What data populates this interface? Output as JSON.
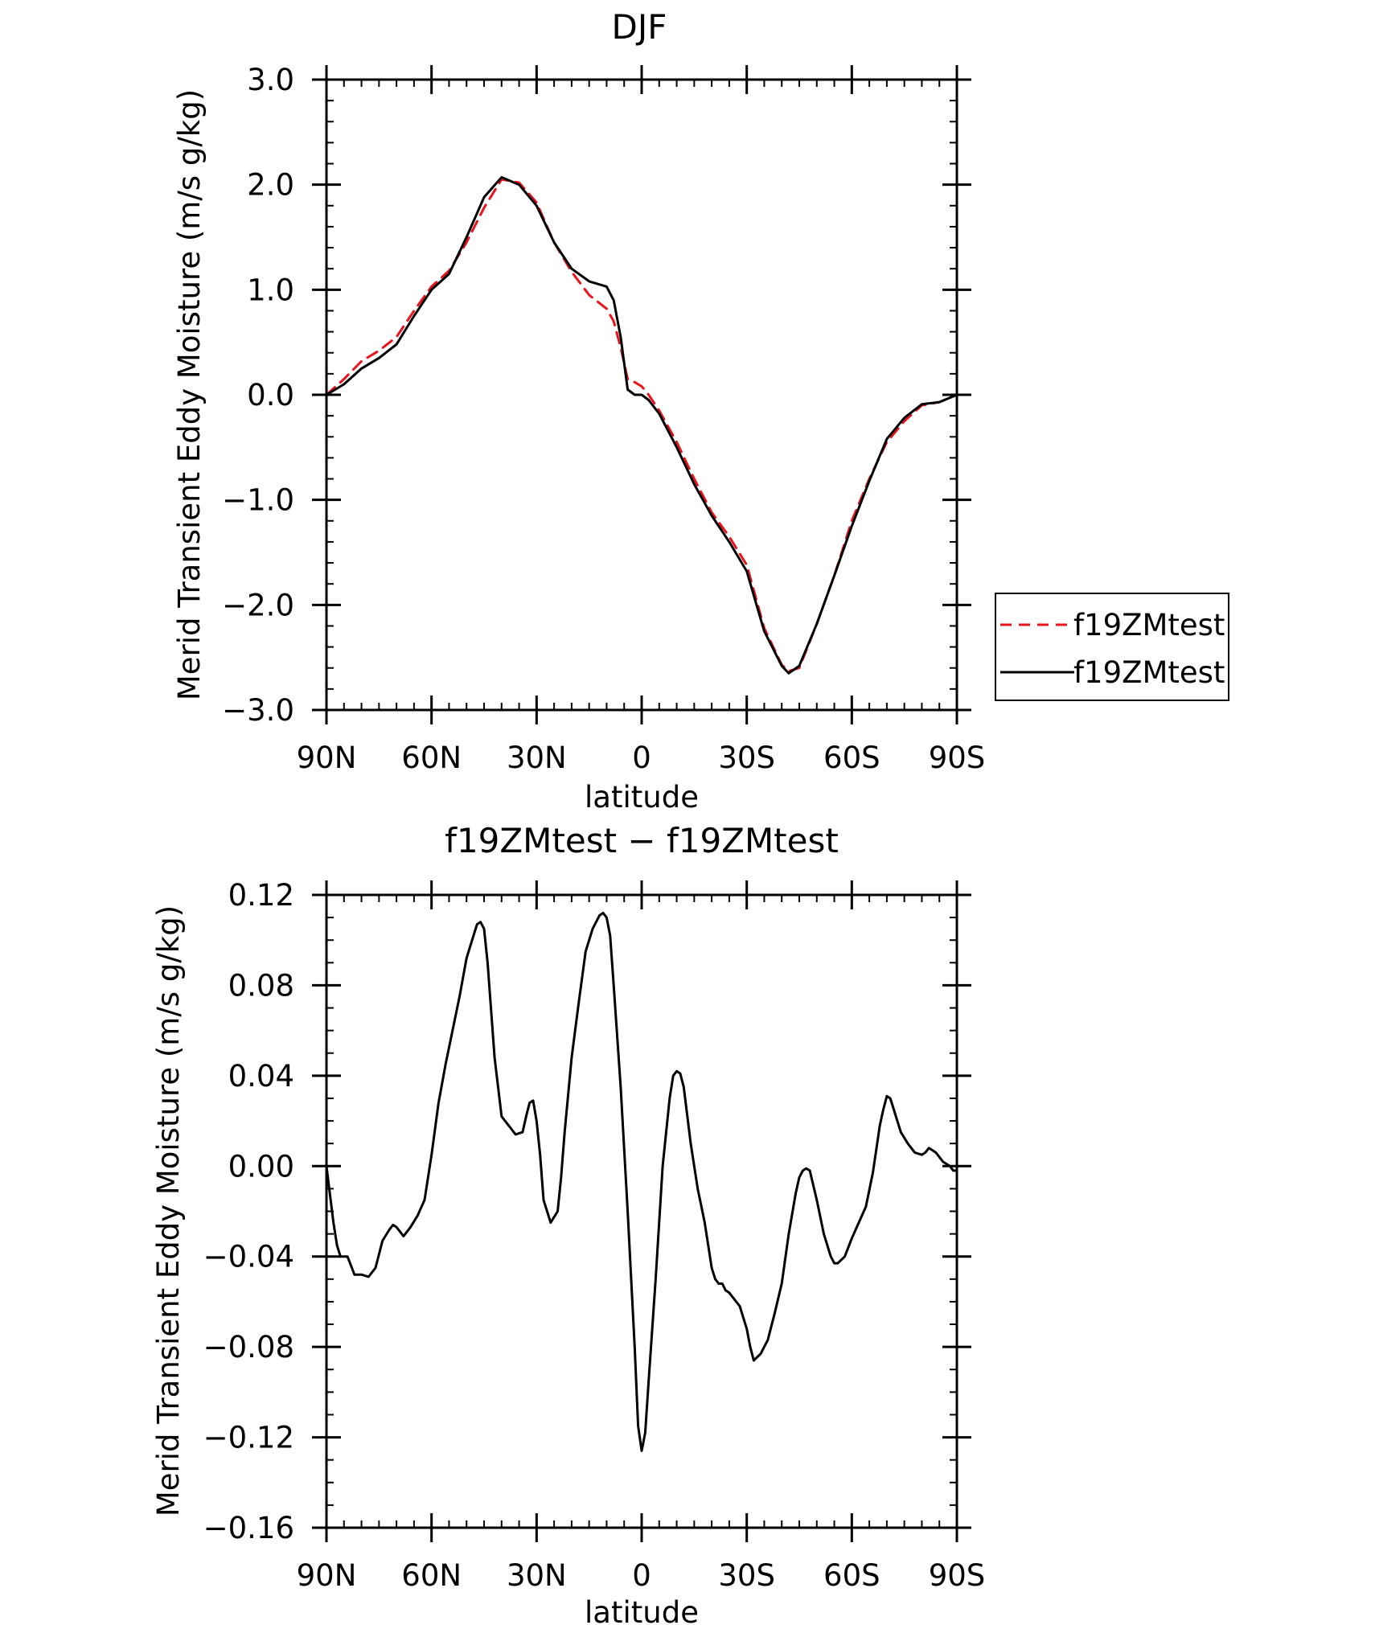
{
  "chart_data": [
    {
      "type": "line",
      "title": "DJF",
      "xlabel": "latitude",
      "ylabel": "Merid Transient Eddy Moisture (m/s g/kg)",
      "xlim": [
        90,
        -90
      ],
      "ylim": [
        -3.0,
        3.0
      ],
      "x_ticks": [
        90,
        60,
        30,
        0,
        -30,
        -60,
        -90
      ],
      "x_tick_labels": [
        "90N",
        "60N",
        "30N",
        "0",
        "30S",
        "60S",
        "90S"
      ],
      "y_ticks": [
        3,
        2,
        1,
        0,
        -1,
        -2,
        -3
      ],
      "y_tick_labels": [
        "3.0",
        "2.0",
        "1.0",
        "0.0",
        "−1.0",
        "−2.0",
        "−3.0"
      ],
      "legend": {
        "position": "right",
        "entries": [
          {
            "label": "f19ZMtest",
            "color": "#e8141c",
            "style": "dashed"
          },
          {
            "label": "f19ZMtest",
            "color": "#000000",
            "style": "solid"
          }
        ]
      },
      "series": [
        {
          "color": "#e8141c",
          "style": "dashed",
          "x": [
            90,
            85,
            80,
            75,
            70,
            65,
            60,
            55,
            50,
            45,
            40,
            35,
            30,
            25,
            20,
            15,
            10,
            8,
            6,
            4,
            2,
            0,
            -2,
            -5,
            -10,
            -15,
            -20,
            -25,
            -30,
            -35,
            -40,
            -42,
            -45,
            -50,
            -55,
            -60,
            -65,
            -70,
            -75,
            -80,
            -85,
            -90
          ],
          "y": [
            0.0,
            0.15,
            0.32,
            0.42,
            0.55,
            0.8,
            1.03,
            1.18,
            1.45,
            1.78,
            2.05,
            2.02,
            1.83,
            1.45,
            1.17,
            0.95,
            0.82,
            0.7,
            0.45,
            0.15,
            0.12,
            0.08,
            0.0,
            -0.15,
            -0.45,
            -0.8,
            -1.12,
            -1.35,
            -1.62,
            -2.22,
            -2.57,
            -2.63,
            -2.6,
            -2.18,
            -1.72,
            -1.2,
            -0.8,
            -0.45,
            -0.25,
            -0.1,
            -0.07,
            0.0
          ]
        },
        {
          "color": "#000000",
          "style": "solid",
          "x": [
            90,
            85,
            80,
            75,
            70,
            65,
            60,
            55,
            50,
            45,
            40,
            35,
            30,
            25,
            20,
            15,
            10,
            8,
            6,
            4,
            2,
            0,
            -2,
            -5,
            -10,
            -15,
            -20,
            -25,
            -30,
            -35,
            -40,
            -42,
            -45,
            -50,
            -55,
            -60,
            -65,
            -70,
            -75,
            -80,
            -85,
            -90
          ],
          "y": [
            0.0,
            0.1,
            0.25,
            0.35,
            0.48,
            0.75,
            1.0,
            1.15,
            1.5,
            1.88,
            2.07,
            2.0,
            1.8,
            1.45,
            1.2,
            1.08,
            1.03,
            0.9,
            0.55,
            0.05,
            0.0,
            0.0,
            -0.05,
            -0.18,
            -0.5,
            -0.85,
            -1.15,
            -1.4,
            -1.68,
            -2.25,
            -2.58,
            -2.65,
            -2.58,
            -2.18,
            -1.72,
            -1.25,
            -0.82,
            -0.42,
            -0.22,
            -0.09,
            -0.07,
            0.0
          ]
        }
      ]
    },
    {
      "type": "line",
      "title": "f19ZMtest − f19ZMtest",
      "xlabel": "latitude",
      "ylabel": "Merid Transient Eddy Moisture (m/s g/kg)",
      "xlim": [
        90,
        -90
      ],
      "ylim": [
        -0.16,
        0.12
      ],
      "x_ticks": [
        90,
        60,
        30,
        0,
        -30,
        -60,
        -90
      ],
      "x_tick_labels": [
        "90N",
        "60N",
        "30N",
        "0",
        "30S",
        "60S",
        "90S"
      ],
      "y_ticks": [
        0.12,
        0.08,
        0.04,
        0.0,
        -0.04,
        -0.08,
        -0.12,
        -0.16
      ],
      "y_tick_labels": [
        "0.12",
        "0.08",
        "0.04",
        "0.00",
        "−0.04",
        "−0.08",
        "−0.12",
        "−0.16"
      ],
      "series": [
        {
          "color": "#000000",
          "style": "solid",
          "x": [
            90,
            88,
            87,
            86,
            85,
            84,
            83,
            82,
            80,
            78,
            76,
            74,
            72,
            71,
            70,
            69,
            68,
            67,
            66,
            64,
            62,
            60,
            58,
            56,
            54,
            52,
            50,
            48,
            47,
            46,
            45,
            44,
            42,
            40,
            38,
            36,
            34,
            33,
            32,
            31,
            30,
            29,
            28,
            26,
            24,
            23,
            22,
            20,
            18,
            16,
            14,
            12,
            11,
            10,
            9,
            8,
            6,
            4,
            2,
            1,
            0,
            -1,
            -2,
            -4,
            -6,
            -8,
            -9,
            -10,
            -11,
            -12,
            -14,
            -16,
            -18,
            -20,
            -21,
            -22,
            -23,
            -24,
            -25,
            -26,
            -28,
            -30,
            -31,
            -32,
            -34,
            -35,
            -36,
            -38,
            -40,
            -42,
            -44,
            -45,
            -46,
            -47,
            -48,
            -50,
            -52,
            -54,
            -55,
            -56,
            -58,
            -60,
            -62,
            -64,
            -66,
            -68,
            -69,
            -70,
            -71,
            -72,
            -74,
            -76,
            -78,
            -80,
            -81,
            -82,
            -84,
            -86,
            -88,
            -89,
            -90
          ],
          "y": [
            0.0,
            -0.025,
            -0.035,
            -0.04,
            -0.04,
            -0.04,
            -0.044,
            -0.048,
            -0.048,
            -0.049,
            -0.045,
            -0.033,
            -0.028,
            -0.026,
            -0.027,
            -0.029,
            -0.031,
            -0.029,
            -0.027,
            -0.022,
            -0.015,
            0.005,
            0.028,
            0.045,
            0.06,
            0.075,
            0.092,
            0.102,
            0.107,
            0.108,
            0.105,
            0.09,
            0.048,
            0.022,
            0.018,
            0.014,
            0.015,
            0.022,
            0.028,
            0.029,
            0.02,
            0.005,
            -0.015,
            -0.025,
            -0.02,
            -0.005,
            0.015,
            0.048,
            0.072,
            0.095,
            0.105,
            0.111,
            0.112,
            0.11,
            0.102,
            0.08,
            0.035,
            -0.02,
            -0.08,
            -0.115,
            -0.126,
            -0.118,
            -0.095,
            -0.05,
            0.0,
            0.03,
            0.04,
            0.042,
            0.041,
            0.035,
            0.01,
            -0.01,
            -0.025,
            -0.045,
            -0.05,
            -0.052,
            -0.052,
            -0.055,
            -0.056,
            -0.058,
            -0.062,
            -0.072,
            -0.08,
            -0.086,
            -0.083,
            -0.08,
            -0.077,
            -0.065,
            -0.052,
            -0.03,
            -0.012,
            -0.005,
            -0.002,
            -0.001,
            -0.002,
            -0.015,
            -0.03,
            -0.04,
            -0.043,
            -0.043,
            -0.04,
            -0.032,
            -0.025,
            -0.018,
            -0.003,
            0.018,
            0.025,
            0.031,
            0.03,
            0.025,
            0.015,
            0.01,
            0.006,
            0.005,
            0.006,
            0.008,
            0.006,
            0.002,
            0.0,
            -0.002,
            -0.002
          ]
        }
      ]
    }
  ]
}
